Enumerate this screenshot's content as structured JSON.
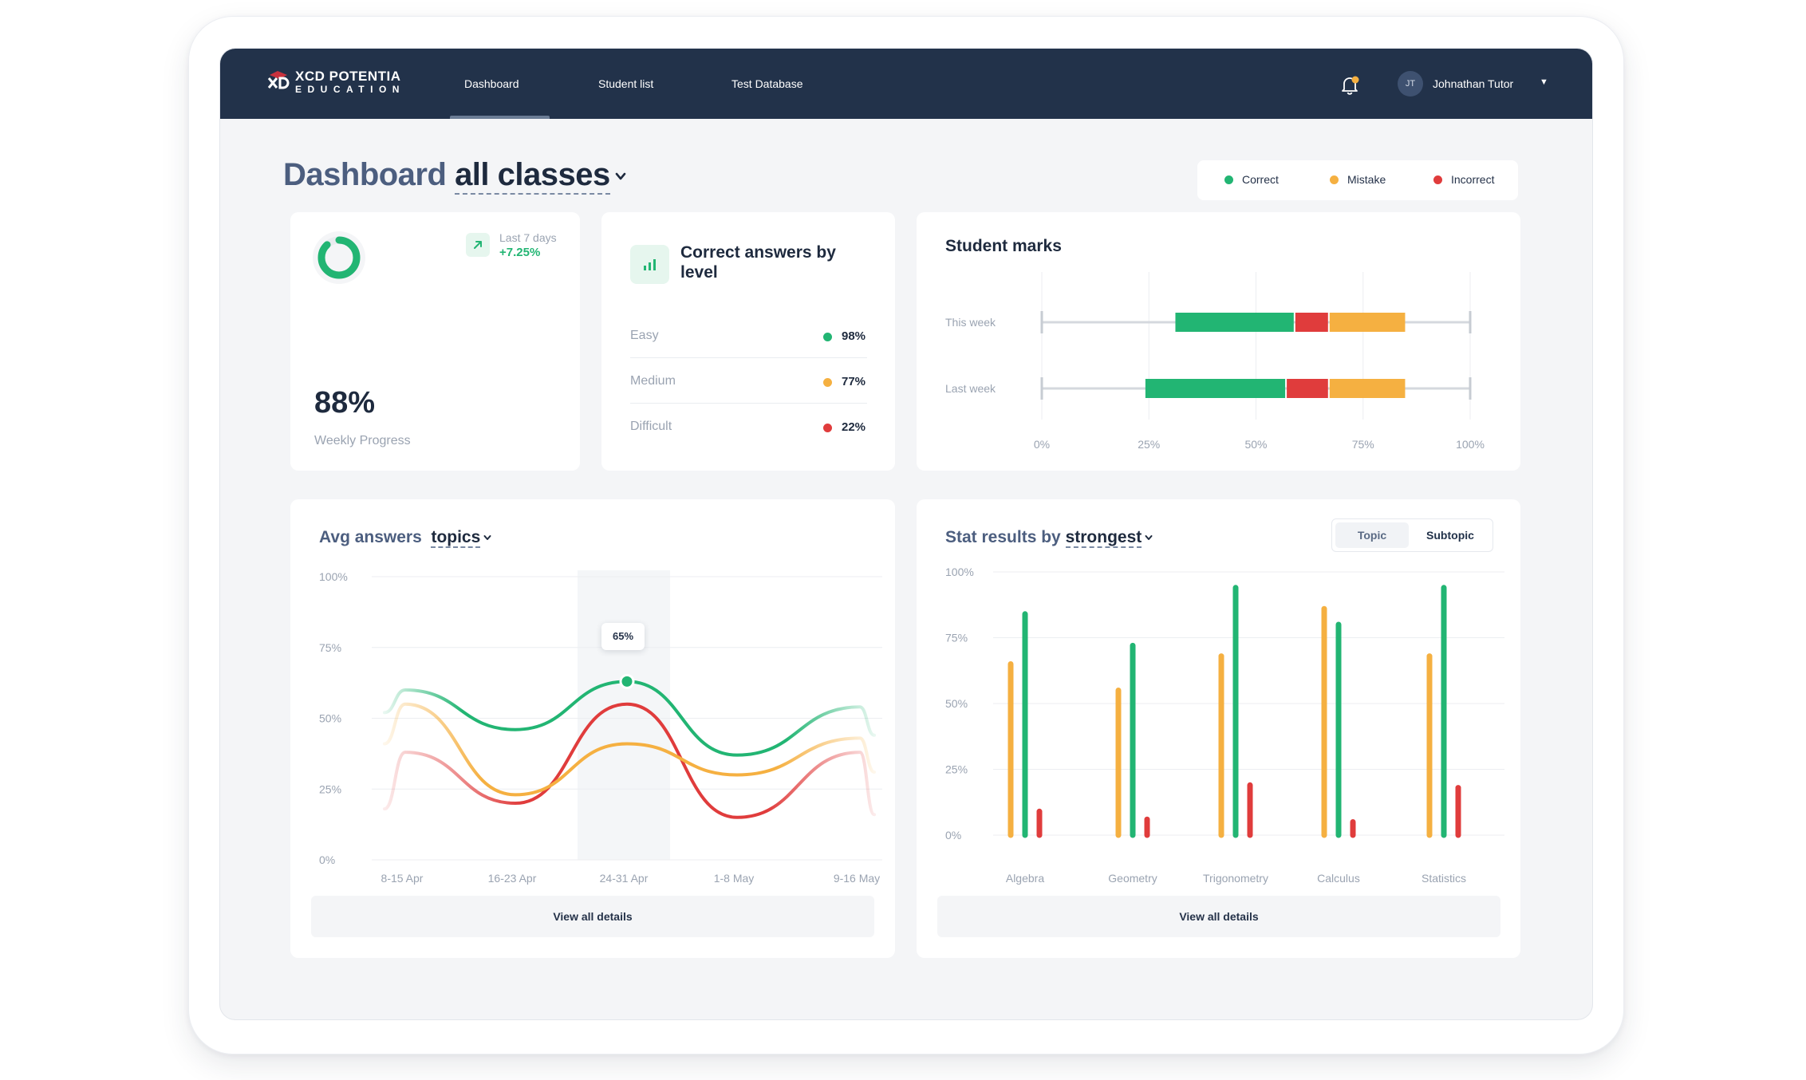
{
  "app": {
    "logo_name": "XCD POTENTIA",
    "logo_sub": "EDUCATION"
  },
  "nav": {
    "items": [
      {
        "label": "Dashboard",
        "active": true
      },
      {
        "label": "Student list",
        "active": false
      },
      {
        "label": "Test Database",
        "active": false
      }
    ]
  },
  "user": {
    "initials": "JT",
    "name": "Johnathan Tutor"
  },
  "header": {
    "title": "Dashboard",
    "selector": "all classes"
  },
  "legend": {
    "items": [
      {
        "label": "Correct",
        "color": "#22b573"
      },
      {
        "label": "Mistake",
        "color": "#f5b041"
      },
      {
        "label": "Incorrect",
        "color": "#e03c3c"
      }
    ]
  },
  "colors": {
    "correct": "#22b573",
    "mistake": "#f5b041",
    "incorrect": "#e03c3c",
    "navy": "#22324a"
  },
  "progress": {
    "trend_label": "Last 7 days",
    "trend_value": "+7.25%",
    "value": "88%",
    "ring_fraction": 0.88,
    "label": "Weekly Progress"
  },
  "levels": {
    "title": "Correct answers by level",
    "rows": [
      {
        "label": "Easy",
        "value": "98%",
        "color": "#22b573"
      },
      {
        "label": "Medium",
        "value": "77%",
        "color": "#f5b041"
      },
      {
        "label": "Difficult",
        "value": "22%",
        "color": "#e03c3c"
      }
    ]
  },
  "marks": {
    "title": "Student marks"
  },
  "avg": {
    "title": "Avg answers",
    "selector": "topics",
    "tooltip": "65%",
    "details_label": "View all details"
  },
  "stat": {
    "title": "Stat results by",
    "selector": "strongest",
    "toggle": [
      "Topic",
      "Subtopic"
    ],
    "details_label": "View all details"
  },
  "chart_data": [
    {
      "type": "bar",
      "title": "Student marks",
      "orientation": "horizontal-stacked",
      "categories": [
        "This week",
        "Last week"
      ],
      "x_ticks": [
        "0%",
        "25%",
        "50%",
        "75%",
        "100%"
      ],
      "xlim": [
        0,
        100
      ],
      "whisker": [
        [
          0,
          100
        ],
        [
          0,
          100
        ]
      ],
      "series": [
        {
          "name": "Correct",
          "start": [
            31,
            24
          ],
          "end": [
            59,
            57
          ]
        },
        {
          "name": "Incorrect",
          "start": [
            59,
            57
          ],
          "end": [
            67,
            67
          ]
        },
        {
          "name": "Mistake",
          "start": [
            67,
            67
          ],
          "end": [
            85,
            85
          ]
        }
      ]
    },
    {
      "type": "line",
      "title": "Avg answers",
      "x": [
        "8-15 Apr",
        "16-23 Apr",
        "24-31 Apr",
        "1-8 May",
        "9-16 May"
      ],
      "y_ticks": [
        "100%",
        "75%",
        "50%",
        "25%",
        "0%"
      ],
      "ylim": [
        0,
        100
      ],
      "highlight": "24-31 Apr",
      "series": [
        {
          "name": "Correct",
          "values": [
            60,
            46,
            63,
            37,
            54
          ]
        },
        {
          "name": "Mistake",
          "values": [
            55,
            23,
            41,
            30,
            43
          ]
        },
        {
          "name": "Incorrect",
          "values": [
            38,
            20,
            55,
            15,
            38
          ]
        }
      ]
    },
    {
      "type": "bar",
      "title": "Stat results by strongest",
      "categories": [
        "Algebra",
        "Geometry",
        "Trigonometry",
        "Calculus",
        "Statistics"
      ],
      "y_ticks": [
        "100%",
        "75%",
        "50%",
        "25%",
        "0%"
      ],
      "ylim": [
        0,
        100
      ],
      "series": [
        {
          "name": "Mistake",
          "values": [
            65,
            55,
            68,
            86,
            68
          ]
        },
        {
          "name": "Correct",
          "values": [
            84,
            72,
            94,
            80,
            94
          ]
        },
        {
          "name": "Incorrect",
          "values": [
            9,
            6,
            19,
            5,
            18
          ]
        }
      ]
    }
  ]
}
